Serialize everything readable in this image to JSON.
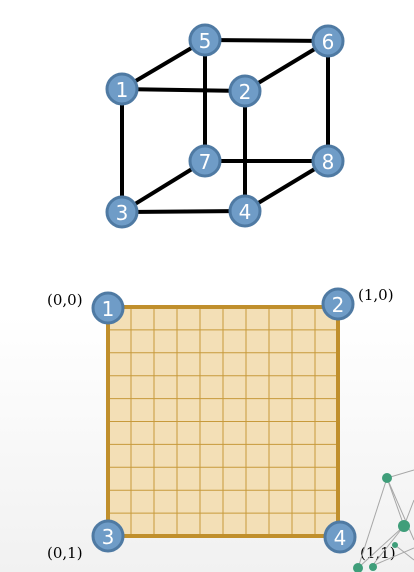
{
  "cube": {
    "nodes": [
      "1",
      "2",
      "3",
      "4",
      "5",
      "6",
      "7",
      "8"
    ]
  },
  "square": {
    "corners": [
      "1",
      "2",
      "3",
      "4"
    ],
    "coords": [
      "(0,0)",
      "(1,0)",
      "(0,1)",
      "(1,1)"
    ],
    "grid_divisions": 10
  },
  "colors": {
    "node_fill": "#6f9cc7",
    "node_stroke": "#4f7aa3",
    "square_fill": "#f3dfb6",
    "square_border": "#c08f2c",
    "grid_line": "#c79a3b",
    "edge": "#000000",
    "network_node": "#3f9e7a"
  }
}
